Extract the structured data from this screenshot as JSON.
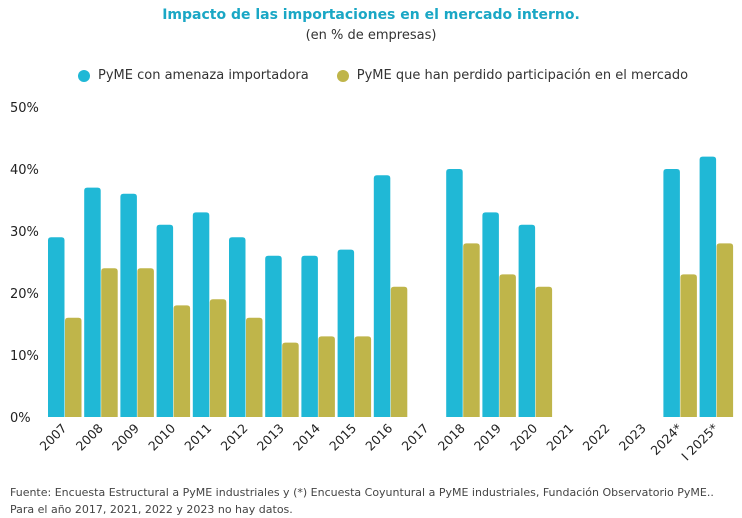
{
  "chart_data": {
    "type": "bar",
    "title": "Impacto de las importaciones en el mercado interno.",
    "subtitle": "(en % de empresas)",
    "categories": [
      "2007",
      "2008",
      "2009",
      "2010",
      "2011",
      "2012",
      "2013",
      "2014",
      "2015",
      "2016",
      "2017",
      "2018",
      "2019",
      "2020",
      "2021",
      "2022",
      "2023",
      "2024*",
      "I 2025*"
    ],
    "series": [
      {
        "name": "PyME con amenaza importadora",
        "color": "#20b8d6",
        "values": [
          29,
          37,
          36,
          31,
          33,
          29,
          26,
          26,
          27,
          39,
          null,
          40,
          33,
          31,
          null,
          null,
          null,
          40,
          42
        ]
      },
      {
        "name": "PyME que han perdido participación en el mercado",
        "color": "#bfb54a",
        "values": [
          16,
          24,
          24,
          18,
          19,
          16,
          12,
          13,
          13,
          21,
          null,
          28,
          23,
          21,
          null,
          null,
          null,
          23,
          28
        ]
      }
    ],
    "yticks": [
      "0%",
      "10%",
      "20%",
      "30%",
      "40%",
      "50%"
    ],
    "ylim": [
      0,
      50
    ],
    "grid": false,
    "legend_position": "top"
  },
  "footnote": "Fuente: Encuesta Estructural a PyME industriales y (*) Encuesta Coyuntural a PyME industriales, Fundación Observatorio PyME.. Para el año 2017, 2021, 2022 y 2023 no hay datos."
}
